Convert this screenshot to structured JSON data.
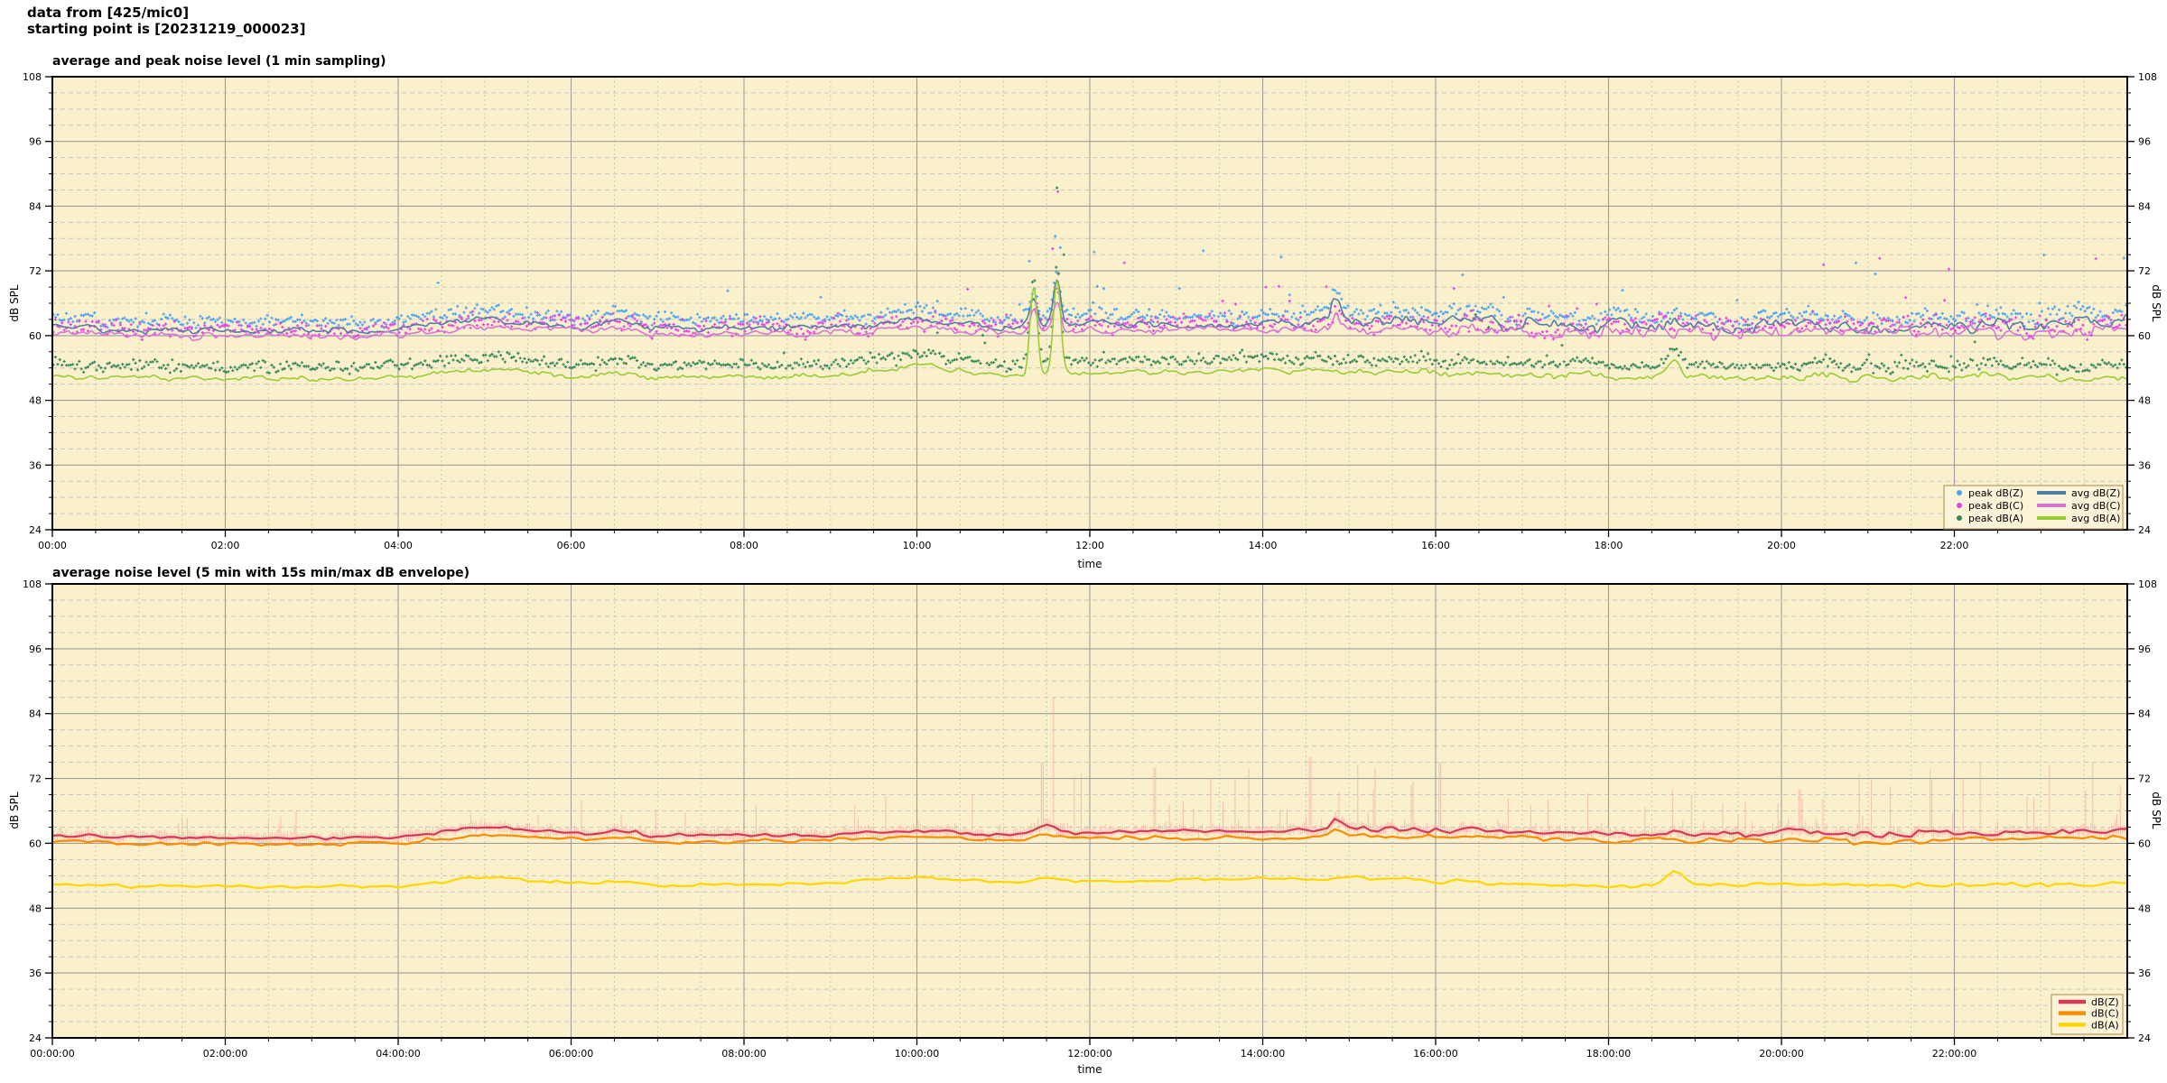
{
  "header": {
    "line1": "data from [425/mic0]",
    "line2": "starting point is [20231219_000023]"
  },
  "colors": {
    "plot_bg": "#faf0cc",
    "grid_major": "#9e9e9e",
    "grid_minor": "#c6c6c6",
    "frame": "#000000",
    "legend_bg": "#fcf4d9",
    "legend_border": "#b59a5f"
  },
  "chart_data": [
    {
      "type": "line+scatter",
      "title": "average and peak noise level (1 min sampling)",
      "xlabel": "time",
      "ylabel": "dB SPL",
      "ylabel_right": "dB SPL",
      "ylim": [
        24,
        108
      ],
      "y_major_ticks": [
        24,
        36,
        48,
        60,
        72,
        84,
        96,
        108
      ],
      "y_minor_step": 3,
      "x_range_hours": [
        0,
        24
      ],
      "x_major_step_hours": 2,
      "x_minor_step_hours": 0.5,
      "x_tick_labels": [
        "00:00",
        "02:00",
        "04:00",
        "06:00",
        "08:00",
        "10:00",
        "12:00",
        "14:00",
        "16:00",
        "18:00",
        "20:00",
        "22:00"
      ],
      "sampling_minutes": 1,
      "grid": true,
      "legend_position": "bottom-right",
      "lines": [
        {
          "name": "avg dB(Z)",
          "color": "#4f7ea9",
          "jitter": 0.5,
          "jitter_late": 0.95,
          "spike_key": "z",
          "hourly_dB": [
            61.6,
            61.0,
            60.9,
            60.9,
            61.1,
            63.0,
            61.9,
            61.4,
            61.5,
            61.6,
            62.3,
            61.7,
            62.2,
            62.2,
            62.1,
            62.6,
            62.7,
            62.1,
            61.9,
            61.6,
            62.0,
            61.5,
            61.8,
            62.0,
            62.6
          ]
        },
        {
          "name": "avg dB(C)",
          "color": "#d973d6",
          "jitter": 0.55,
          "jitter_late": 1.0,
          "spike_key": "c",
          "hourly_dB": [
            60.4,
            60.0,
            59.9,
            59.9,
            60.1,
            61.7,
            60.8,
            60.3,
            60.4,
            60.5,
            61.2,
            60.6,
            61.0,
            61.0,
            61.0,
            61.4,
            61.4,
            60.9,
            60.6,
            60.4,
            60.8,
            60.3,
            60.6,
            60.8,
            61.3
          ]
        },
        {
          "name": "avg dB(A)",
          "color": "#9acd32",
          "jitter": 0.4,
          "jitter_late": 0.6,
          "spike_key": "a",
          "hourly_dB": [
            52.4,
            52.1,
            51.9,
            51.9,
            52.1,
            53.8,
            52.7,
            52.2,
            52.4,
            52.6,
            53.8,
            52.6,
            53.0,
            53.3,
            53.5,
            53.4,
            53.0,
            52.6,
            52.4,
            52.2,
            52.4,
            52.1,
            52.2,
            52.3,
            52.5
          ]
        }
      ],
      "points": [
        {
          "name": "peak dB(Z)",
          "color": "#4aa2f5",
          "ref_line": 0,
          "offset_dB": 1.7,
          "spread_dB": 1.0,
          "outlier_rate_early": 0.01,
          "outlier_rate_late": 0.05,
          "outlier_mag_early_dB": 5,
          "outlier_mag_late_dB": 13
        },
        {
          "name": "peak dB(C)",
          "color": "#e93ee9",
          "ref_line": 1,
          "offset_dB": 1.2,
          "spread_dB": 1.5,
          "outlier_rate_early": 0.01,
          "outlier_rate_late": 0.05,
          "outlier_mag_early_dB": 5,
          "outlier_mag_late_dB": 12
        },
        {
          "name": "peak dB(A)",
          "color": "#35875a",
          "ref_line": 2,
          "offset_dB": 2.2,
          "spread_dB": 1.0,
          "outlier_rate_early": 0.012,
          "outlier_rate_late": 0.03,
          "outlier_mag_early_dB": 4,
          "outlier_mag_late_dB": 7
        }
      ],
      "spikes": [
        {
          "t_hours": 6.55,
          "width_min": 8,
          "z": 1.1,
          "c": 1.0,
          "a": 0.9
        },
        {
          "t_hours": 10.0,
          "width_min": 18,
          "z": 0.5,
          "c": 0.5,
          "a": 0.8
        },
        {
          "t_hours": 11.35,
          "width_min": 2.5,
          "z": 5.5,
          "c": 4.2,
          "a": 16.5
        },
        {
          "t_hours": 11.62,
          "width_min": 2.5,
          "z": 8.5,
          "c": 5.5,
          "a": 17.5
        },
        {
          "t_hours": 14.85,
          "width_min": 3,
          "z": 4.3,
          "c": 2.2,
          "a": 0.5
        },
        {
          "t_hours": 18.77,
          "width_min": 5,
          "z": 0.8,
          "c": 0.6,
          "a": 2.6
        }
      ],
      "fixed_outliers": [
        {
          "point_series": 2,
          "t_hours": 11.62,
          "dB": 87.4
        },
        {
          "point_series": 1,
          "t_hours": 11.63,
          "dB": 86.7
        },
        {
          "point_series": 0,
          "t_hours": 11.6,
          "dB": 78.4
        },
        {
          "point_series": 0,
          "t_hours": 11.66,
          "dB": 76.3
        },
        {
          "point_series": 1,
          "t_hours": 11.57,
          "dB": 76.1
        },
        {
          "point_series": 2,
          "t_hours": 11.7,
          "dB": 75.0
        },
        {
          "point_series": 0,
          "t_hours": 11.3,
          "dB": 73.8
        },
        {
          "point_series": 0,
          "t_hours": 12.05,
          "dB": 75.5
        },
        {
          "point_series": 1,
          "t_hours": 12.4,
          "dB": 73.5
        }
      ]
    },
    {
      "type": "line+envelope",
      "title": "average noise level (5 min with 15s min/max dB envelope)",
      "xlabel": "time",
      "ylabel": "dB SPL",
      "ylabel_right": "dB SPL",
      "ylim": [
        24,
        108
      ],
      "y_major_ticks": [
        24,
        36,
        48,
        60,
        72,
        84,
        96,
        108
      ],
      "y_minor_step": 3,
      "x_range_hours": [
        0,
        24
      ],
      "x_major_step_hours": 2,
      "x_minor_step_hours": 0.5,
      "x_tick_labels": [
        "00:00:00",
        "02:00:00",
        "04:00:00",
        "06:00:00",
        "08:00:00",
        "10:00:00",
        "12:00:00",
        "14:00:00",
        "16:00:00",
        "18:00:00",
        "20:00:00",
        "22:00:00"
      ],
      "sampling_minutes": 5,
      "grid": true,
      "legend_position": "bottom-right",
      "lines": [
        {
          "name": "dB(Z)",
          "color": "#d63a58",
          "jitter": 0.3,
          "jitter_late": 0.5,
          "spike_key": "z",
          "hourly_dB": [
            61.6,
            61.0,
            60.9,
            60.9,
            61.1,
            63.0,
            61.9,
            61.4,
            61.5,
            61.6,
            62.3,
            61.7,
            62.2,
            62.2,
            62.1,
            62.6,
            62.7,
            62.1,
            61.9,
            61.6,
            62.0,
            61.5,
            61.8,
            62.0,
            62.6
          ]
        },
        {
          "name": "dB(C)",
          "color": "#ff8c00",
          "jitter": 0.3,
          "jitter_late": 0.45,
          "spike_key": "c",
          "hourly_dB": [
            60.4,
            60.0,
            59.9,
            59.9,
            60.1,
            61.7,
            60.8,
            60.3,
            60.4,
            60.5,
            61.2,
            60.6,
            61.0,
            61.0,
            61.0,
            61.4,
            61.4,
            60.9,
            60.6,
            60.4,
            60.8,
            60.3,
            60.6,
            60.8,
            61.3
          ]
        },
        {
          "name": "dB(A)",
          "color": "#ffd700",
          "jitter": 0.25,
          "jitter_late": 0.4,
          "spike_key": "a",
          "hourly_dB": [
            52.4,
            52.1,
            51.9,
            51.9,
            52.1,
            53.8,
            52.7,
            52.2,
            52.4,
            52.6,
            53.8,
            52.6,
            53.0,
            53.3,
            53.5,
            53.4,
            53.0,
            52.6,
            52.4,
            52.2,
            52.4,
            52.1,
            52.2,
            52.3,
            52.5
          ]
        }
      ],
      "spikes": [
        {
          "t_hours": 6.55,
          "width_min": 10,
          "z": 0.8,
          "c": 0.7,
          "a": 0.6
        },
        {
          "t_hours": 11.5,
          "width_min": 6,
          "z": 1.3,
          "c": 1.0,
          "a": 0.8
        },
        {
          "t_hours": 14.85,
          "width_min": 4,
          "z": 2.2,
          "c": 1.2,
          "a": 0.3
        },
        {
          "t_hours": 18.77,
          "width_min": 6,
          "z": 0.5,
          "c": 0.4,
          "a": 2.4
        }
      ],
      "envelope": {
        "label": "15s min/max dB envelope",
        "color": "#f2b3ab",
        "ref_line": 0,
        "typ_drop_dB": 1.2,
        "max_rise_hourly_dB": [
          5,
          4,
          4.5,
          4,
          4.5,
          5,
          5,
          4.5,
          5,
          6,
          6,
          14,
          11,
          10,
          12,
          11,
          9,
          10,
          10,
          9,
          9,
          10,
          12,
          12,
          12
        ],
        "fixed_peaks": [
          {
            "t_hours": 11.58,
            "dB": 87.0
          },
          {
            "t_hours": 11.45,
            "dB": 75.0
          },
          {
            "t_hours": 11.9,
            "dB": 73.0
          },
          {
            "t_hours": 12.75,
            "dB": 74.0
          },
          {
            "t_hours": 13.4,
            "dB": 72.0
          },
          {
            "t_hours": 14.55,
            "dB": 76.0
          },
          {
            "t_hours": 15.3,
            "dB": 74.0
          },
          {
            "t_hours": 16.05,
            "dB": 75.0
          },
          {
            "t_hours": 20.9,
            "dB": 73.0
          },
          {
            "t_hours": 22.3,
            "dB": 75.0
          },
          {
            "t_hours": 23.1,
            "dB": 74.5
          },
          {
            "t_hours": 23.6,
            "dB": 75.0
          }
        ]
      }
    }
  ]
}
